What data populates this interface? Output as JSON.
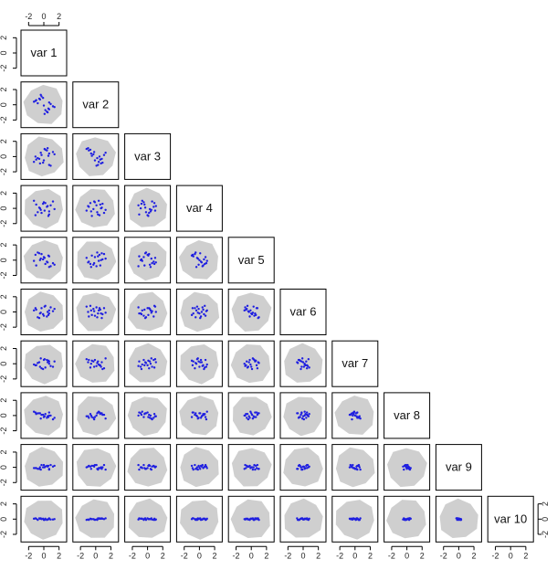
{
  "chart_data": {
    "type": "pairs",
    "variables": [
      {
        "name": "var 1",
        "values": [
          -1.0,
          0.4,
          0.7,
          -0.3,
          1.2,
          -0.6,
          0.1,
          -1.3,
          0.6,
          0.9,
          -0.4,
          0.2,
          -0.8,
          1.4,
          -0.1,
          0.5,
          -1.1,
          0.0,
          0.7,
          -0.5
        ]
      },
      {
        "name": "var 2",
        "values": [
          0.6,
          -0.9,
          0.3,
          1.1,
          -0.2,
          0.8,
          -1.2,
          0.4,
          -0.5,
          0.1,
          1.3,
          -0.7,
          0.2,
          -0.3,
          0.9,
          -1.0,
          0.5,
          -0.1,
          -0.6,
          0.7
        ]
      },
      {
        "name": "var 3",
        "values": [
          -0.4,
          0.8,
          -1.1,
          0.2,
          0.6,
          -0.3,
          1.0,
          -0.7,
          0.1,
          -1.2,
          0.5,
          0.9,
          -0.2,
          0.3,
          -0.8,
          1.1,
          0.0,
          -0.5,
          0.4,
          -0.9
        ]
      },
      {
        "name": "var 4",
        "values": [
          0.5,
          0.2,
          -0.8,
          -0.6,
          0.9,
          0.1,
          -0.3,
          1.0,
          -1.0,
          0.4,
          -0.2,
          0.7,
          -0.5,
          -0.1,
          0.6,
          0.3,
          -0.9,
          0.8,
          -0.4,
          0.0
        ]
      },
      {
        "name": "var 5",
        "values": [
          -0.7,
          -0.2,
          0.5,
          0.8,
          -0.4,
          0.9,
          0.3,
          -0.1,
          0.6,
          -0.8,
          0.2,
          -0.5,
          1.0,
          -0.6,
          0.1,
          -0.3,
          0.7,
          0.4,
          -0.9,
          0.0
        ]
      },
      {
        "name": "var 6",
        "values": [
          0.3,
          -0.6,
          -0.2,
          0.5,
          0.1,
          -0.8,
          0.7,
          0.2,
          -0.4,
          0.6,
          -0.1,
          0.8,
          -0.7,
          0.4,
          -0.3,
          0.0,
          0.5,
          -0.5,
          0.2,
          -0.2
        ]
      },
      {
        "name": "var 7",
        "values": [
          -0.2,
          0.5,
          0.3,
          -0.6,
          -0.4,
          0.2,
          0.6,
          -0.1,
          0.4,
          -0.3,
          0.7,
          -0.5,
          0.1,
          0.3,
          -0.7,
          0.2,
          -0.2,
          0.5,
          0.0,
          -0.4
        ]
      },
      {
        "name": "var 8",
        "values": [
          0.2,
          -0.3,
          0.4,
          0.1,
          -0.5,
          0.3,
          -0.1,
          0.5,
          -0.2,
          0.0,
          -0.4,
          0.2,
          0.3,
          -0.3,
          0.1,
          -0.1,
          0.4,
          -0.2,
          0.0,
          0.3
        ]
      },
      {
        "name": "var 9",
        "values": [
          -0.1,
          0.2,
          -0.3,
          0.3,
          0.1,
          -0.2,
          0.0,
          -0.1,
          0.2,
          0.3,
          -0.3,
          0.1,
          -0.2,
          0.2,
          0.0,
          0.1,
          -0.1,
          0.3,
          -0.2,
          0.0
        ]
      },
      {
        "name": "var 10",
        "values": [
          0.05,
          -0.1,
          0.1,
          0.0,
          -0.05,
          0.1,
          -0.1,
          0.05,
          0.0,
          -0.05,
          0.1,
          0.05,
          -0.1,
          0.0,
          0.05,
          -0.05,
          0.1,
          -0.1,
          0.0,
          0.05
        ]
      }
    ],
    "xlim": [
      -3,
      3
    ],
    "ylim": [
      -3,
      3
    ],
    "xticks": [
      -2,
      0,
      2
    ],
    "yticks": [
      -2,
      0,
      2
    ],
    "point_color": "#1f1fe0",
    "region_color": "#cfcfcf"
  }
}
